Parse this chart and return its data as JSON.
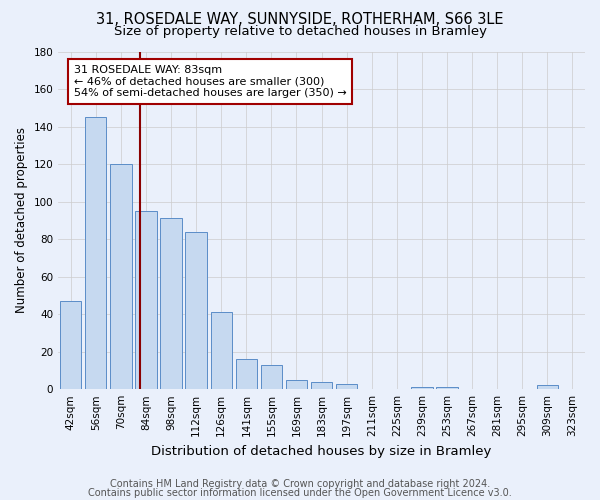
{
  "title1": "31, ROSEDALE WAY, SUNNYSIDE, ROTHERHAM, S66 3LE",
  "title2": "Size of property relative to detached houses in Bramley",
  "xlabel": "Distribution of detached houses by size in Bramley",
  "ylabel": "Number of detached properties",
  "bar_labels": [
    "42sqm",
    "56sqm",
    "70sqm",
    "84sqm",
    "98sqm",
    "112sqm",
    "126sqm",
    "141sqm",
    "155sqm",
    "169sqm",
    "183sqm",
    "197sqm",
    "211sqm",
    "225sqm",
    "239sqm",
    "253sqm",
    "267sqm",
    "281sqm",
    "295sqm",
    "309sqm",
    "323sqm"
  ],
  "bar_values": [
    47,
    145,
    120,
    95,
    91,
    84,
    41,
    16,
    13,
    5,
    4,
    3,
    0,
    0,
    1,
    1,
    0,
    0,
    0,
    2,
    0
  ],
  "bar_color": "#c6d9f0",
  "bar_edge_color": "#5b8dc8",
  "vline_color": "#8b0000",
  "annotation_text": "31 ROSEDALE WAY: 83sqm\n← 46% of detached houses are smaller (300)\n54% of semi-detached houses are larger (350) →",
  "annotation_box_color": "white",
  "annotation_box_edge_color": "#a00000",
  "ylim": [
    0,
    180
  ],
  "yticks": [
    0,
    20,
    40,
    60,
    80,
    100,
    120,
    140,
    160,
    180
  ],
  "bg_color": "#eaf0fb",
  "footer1": "Contains HM Land Registry data © Crown copyright and database right 2024.",
  "footer2": "Contains public sector information licensed under the Open Government Licence v3.0.",
  "title_fontsize": 10.5,
  "subtitle_fontsize": 9.5,
  "xlabel_fontsize": 9.5,
  "ylabel_fontsize": 8.5,
  "tick_fontsize": 7.5,
  "annotation_fontsize": 8,
  "footer_fontsize": 7
}
